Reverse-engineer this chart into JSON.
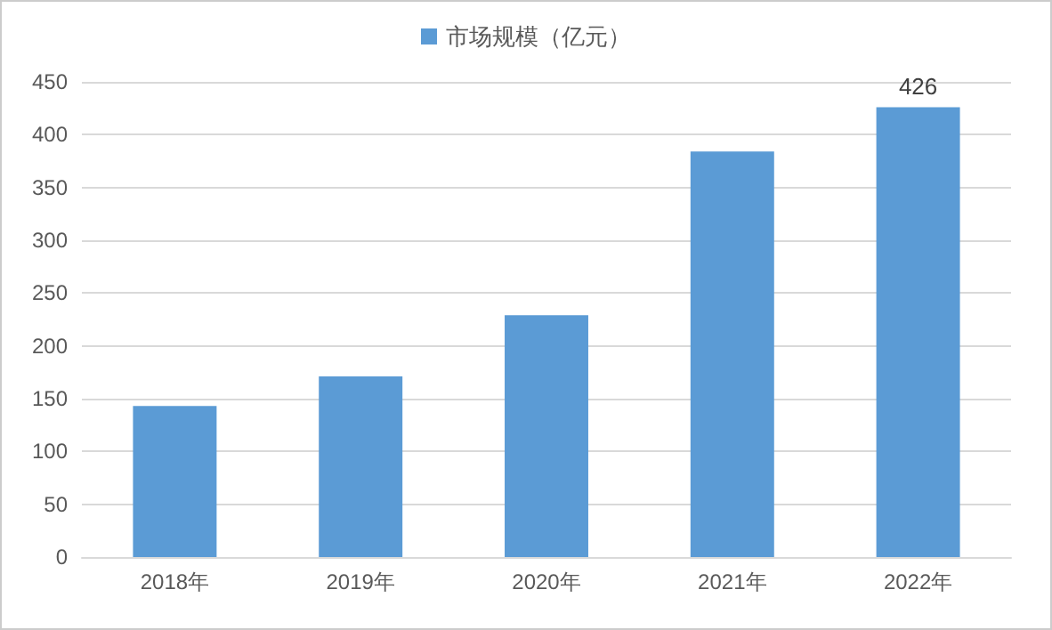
{
  "chart_data": {
    "type": "bar",
    "categories": [
      "2018年",
      "2019年",
      "2020年",
      "2021年",
      "2022年"
    ],
    "series": [
      {
        "name": "市场规模（亿元）",
        "color": "#5b9bd5",
        "values": [
          143,
          171,
          229,
          384,
          426
        ],
        "value_labels": [
          null,
          null,
          null,
          null,
          "426"
        ]
      }
    ],
    "ylim": [
      0,
      450
    ],
    "yticks": [
      0,
      50,
      100,
      150,
      200,
      250,
      300,
      350,
      400,
      450
    ],
    "grid": "y",
    "legend": "top"
  }
}
